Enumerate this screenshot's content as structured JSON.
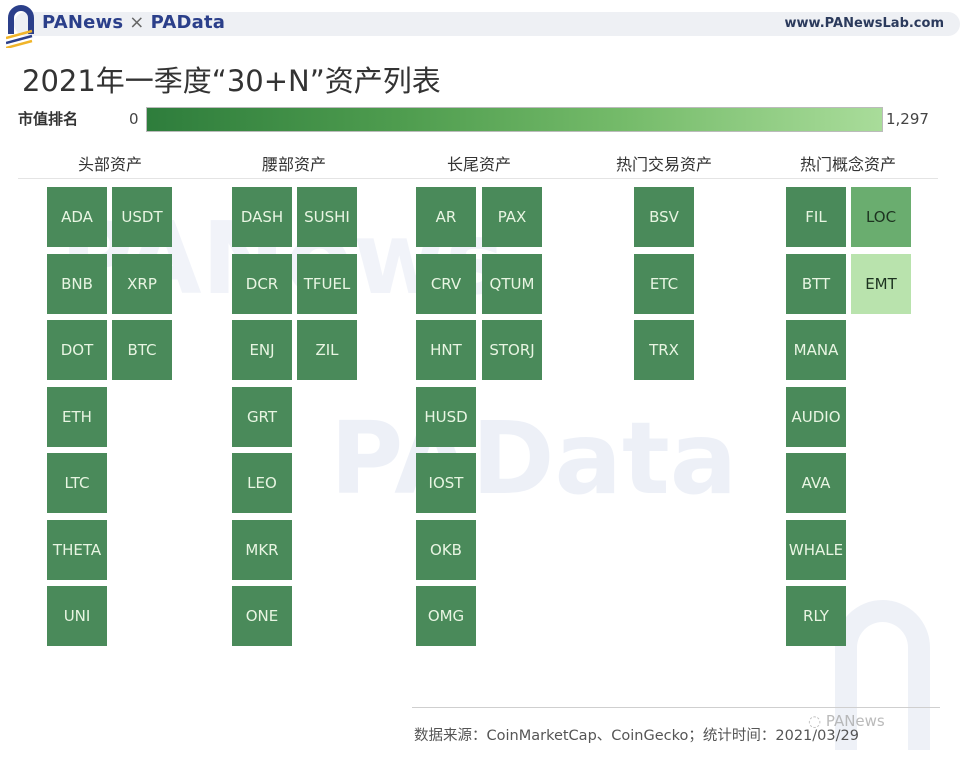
{
  "header": {
    "brand_left": "PANews",
    "brand_sep": "×",
    "brand_right": "PAData",
    "url": "www.PANewsLab.com"
  },
  "title": "2021年一季度“30+N”资产列表",
  "legend": {
    "label": "市值排名",
    "min": "0",
    "max": "1,297",
    "color_low": "#2e7d3c",
    "color_high": "#a9dc9a"
  },
  "watermarks": {
    "top": "PANews",
    "middle": "PAData"
  },
  "footer": {
    "source": "数据来源：CoinMarketCap、CoinGecko；统计时间：2021/03/29",
    "wechat_tag": "PANews"
  },
  "chart_data": {
    "type": "table",
    "title": "2021年一季度“30+N”资产列表",
    "color_legend": {
      "label": "市值排名",
      "range": [
        0,
        1297
      ]
    },
    "categories": [
      "头部资产",
      "腰部资产",
      "长尾资产",
      "热门交易资产",
      "热门概念资产"
    ],
    "groups": [
      {
        "name": "头部资产",
        "columns": [
          [
            "ADA",
            "BNB",
            "DOT",
            "ETH",
            "LTC",
            "THETA",
            "UNI"
          ],
          [
            "USDT",
            "XRP",
            "BTC"
          ]
        ]
      },
      {
        "name": "腰部资产",
        "columns": [
          [
            "DASH",
            "DCR",
            "ENJ",
            "GRT",
            "LEO",
            "MKR",
            "ONE"
          ],
          [
            "SUSHI",
            "TFUEL",
            "ZIL"
          ]
        ]
      },
      {
        "name": "长尾资产",
        "columns": [
          [
            "AR",
            "CRV",
            "HNT",
            "HUSD",
            "IOST",
            "OKB",
            "OMG"
          ],
          [
            "PAX",
            "QTUM",
            "STORJ"
          ]
        ]
      },
      {
        "name": "热门交易资产",
        "columns": [
          [
            "BSV",
            "ETC",
            "TRX"
          ]
        ]
      },
      {
        "name": "热门概念资产",
        "columns": [
          [
            "FIL",
            "BTT",
            "MANA",
            "AUDIO",
            "AVA",
            "WHALE",
            "RLY"
          ],
          [
            "LOC",
            "EMT"
          ]
        ]
      }
    ],
    "tile_colors": {
      "default": "#4a8a5a",
      "LOC": "#6aad6f",
      "EMT": "#b9e3ad"
    }
  }
}
